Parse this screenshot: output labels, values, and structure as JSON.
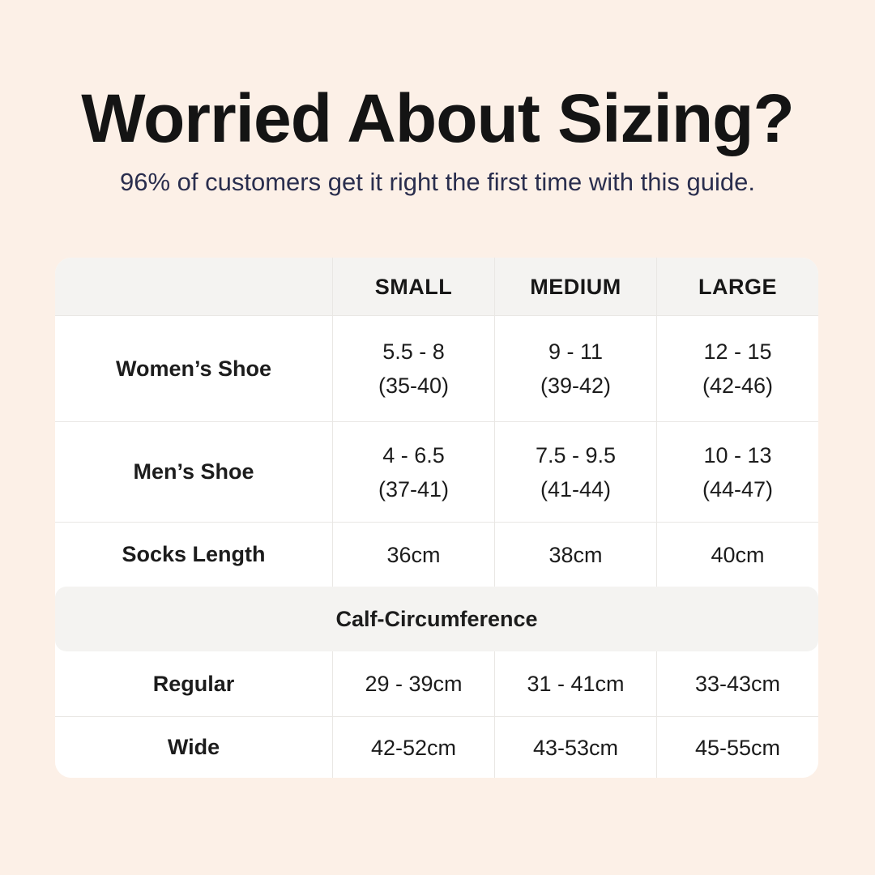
{
  "colors": {
    "background": "#fcf0e7",
    "title_text": "#141414",
    "subtitle_text": "#2a2e4e",
    "card_background": "#ffffff",
    "header_background": "#f4f3f1",
    "section_band_background": "#f4f3f1",
    "border": "#e9e7e4",
    "table_text": "#1c1c1c"
  },
  "header": {
    "title": "Worried About Sizing?",
    "subtitle": "96% of customers get it right the first time with this guide."
  },
  "table": {
    "column_headers": [
      "SMALL",
      "MEDIUM",
      "LARGE"
    ],
    "rows": [
      {
        "label": "Women’s Shoe",
        "values": [
          {
            "line1": "5.5 - 8",
            "line2": "(35-40)"
          },
          {
            "line1": "9 - 11",
            "line2": "(39-42)"
          },
          {
            "line1": "12 - 15",
            "line2": "(42-46)"
          }
        ]
      },
      {
        "label": "Men’s Shoe",
        "values": [
          {
            "line1": "4 - 6.5",
            "line2": "(37-41)"
          },
          {
            "line1": "7.5 - 9.5",
            "line2": "(41-44)"
          },
          {
            "line1": "10 - 13",
            "line2": "(44-47)"
          }
        ]
      },
      {
        "label": "Socks Length",
        "values": [
          {
            "line1": "36cm"
          },
          {
            "line1": "38cm"
          },
          {
            "line1": "40cm"
          }
        ]
      }
    ],
    "section_header": "Calf-Circumference",
    "section_rows": [
      {
        "label": "Regular",
        "values": [
          {
            "line1": "29 - 39cm"
          },
          {
            "line1": "31 - 41cm"
          },
          {
            "line1": "33-43cm"
          }
        ]
      },
      {
        "label": "Wide",
        "values": [
          {
            "line1": "42-52cm"
          },
          {
            "line1": "43-53cm"
          },
          {
            "line1": "45-55cm"
          }
        ]
      }
    ]
  },
  "chart_data": {
    "type": "table",
    "title": "Worried About Sizing?",
    "subtitle": "96% of customers get it right the first time with this guide.",
    "columns": [
      "",
      "SMALL",
      "MEDIUM",
      "LARGE"
    ],
    "sections": [
      {
        "name": "",
        "rows": [
          [
            "Women’s Shoe",
            "5.5 - 8 (35-40)",
            "9 - 11 (39-42)",
            "12 - 15 (42-46)"
          ],
          [
            "Men’s Shoe",
            "4 - 6.5 (37-41)",
            "7.5 - 9.5 (41-44)",
            "10 - 13 (44-47)"
          ],
          [
            "Socks Length",
            "36cm",
            "38cm",
            "40cm"
          ]
        ]
      },
      {
        "name": "Calf-Circumference",
        "rows": [
          [
            "Regular",
            "29 - 39cm",
            "31 - 41cm",
            "33-43cm"
          ],
          [
            "Wide",
            "42-52cm",
            "43-53cm",
            "45-55cm"
          ]
        ]
      }
    ]
  }
}
